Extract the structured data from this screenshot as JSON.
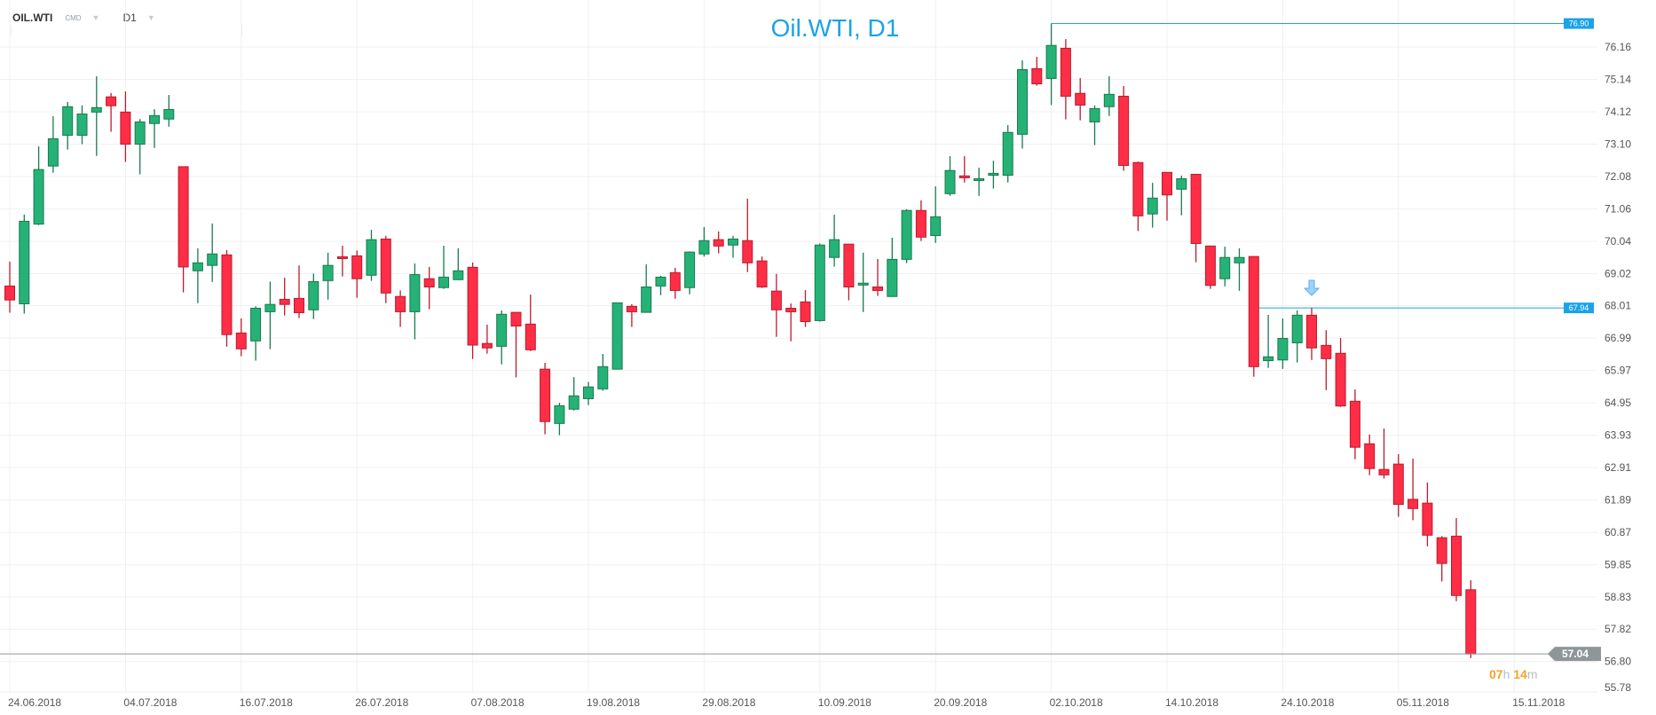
{
  "header": {
    "symbol": "OIL.WTI",
    "category": "CMD",
    "timeframe": "D1"
  },
  "chart_data": {
    "type": "candlestick",
    "title": "Oil.WTI, D1",
    "y_ticks": [
      "76.16",
      "75.14",
      "74.12",
      "73.10",
      "72.08",
      "71.06",
      "70.04",
      "69.02",
      "68.01",
      "66.99",
      "65.97",
      "64.95",
      "63.93",
      "62.91",
      "61.89",
      "60.87",
      "59.85",
      "58.83",
      "57.82",
      "56.80",
      "55.78"
    ],
    "ylim": [
      55.78,
      76.9
    ],
    "x_ticks": [
      "24.06.2018",
      "04.07.2018",
      "16.07.2018",
      "26.07.2018",
      "07.08.2018",
      "19.08.2018",
      "29.08.2018",
      "10.09.2018",
      "20.09.2018",
      "02.10.2018",
      "14.10.2018",
      "24.10.2018",
      "05.11.2018",
      "15.11.2018"
    ],
    "ohlc_fields": [
      "open",
      "high",
      "low",
      "close"
    ],
    "candles": [
      [
        68.63,
        69.4,
        67.79,
        68.19
      ],
      [
        68.07,
        70.88,
        67.76,
        70.67
      ],
      [
        70.58,
        73.03,
        70.55,
        72.3
      ],
      [
        72.41,
        73.98,
        72.2,
        73.27
      ],
      [
        73.38,
        74.43,
        72.93,
        74.28
      ],
      [
        73.38,
        74.32,
        73.1,
        74.05
      ],
      [
        74.11,
        75.24,
        72.73,
        74.25
      ],
      [
        74.59,
        74.71,
        73.49,
        74.31
      ],
      [
        74.11,
        74.76,
        72.54,
        73.1
      ],
      [
        73.1,
        73.89,
        72.15,
        73.8
      ],
      [
        73.75,
        74.2,
        72.98,
        74.0
      ],
      [
        73.89,
        74.65,
        73.65,
        74.19
      ],
      [
        72.39,
        72.39,
        68.43,
        69.23
      ],
      [
        69.11,
        69.82,
        68.09,
        69.36
      ],
      [
        69.28,
        70.6,
        68.76,
        69.64
      ],
      [
        69.61,
        69.76,
        66.72,
        67.1
      ],
      [
        67.15,
        67.61,
        66.42,
        66.65
      ],
      [
        66.9,
        67.99,
        66.28,
        67.93
      ],
      [
        67.82,
        68.77,
        66.64,
        68.05
      ],
      [
        68.21,
        68.89,
        67.7,
        68.05
      ],
      [
        68.24,
        69.28,
        67.62,
        67.79
      ],
      [
        67.88,
        69.02,
        67.59,
        68.77
      ],
      [
        68.8,
        69.68,
        68.2,
        69.28
      ],
      [
        69.55,
        69.9,
        68.93,
        69.5
      ],
      [
        69.58,
        69.75,
        68.26,
        68.86
      ],
      [
        68.97,
        70.4,
        68.79,
        70.09
      ],
      [
        70.11,
        70.21,
        68.09,
        68.41
      ],
      [
        68.3,
        68.49,
        67.34,
        67.82
      ],
      [
        67.82,
        69.34,
        66.95,
        68.99
      ],
      [
        68.86,
        69.23,
        67.9,
        68.6
      ],
      [
        68.58,
        69.9,
        68.54,
        68.91
      ],
      [
        68.83,
        69.82,
        68.83,
        69.11
      ],
      [
        69.22,
        69.37,
        66.33,
        66.77
      ],
      [
        66.82,
        67.41,
        66.5,
        66.68
      ],
      [
        66.73,
        67.86,
        66.16,
        67.74
      ],
      [
        67.8,
        67.8,
        65.75,
        67.37
      ],
      [
        67.43,
        68.36,
        66.58,
        66.62
      ],
      [
        66.01,
        66.21,
        63.96,
        64.36
      ],
      [
        64.3,
        64.95,
        63.93,
        64.86
      ],
      [
        64.75,
        65.76,
        64.71,
        65.17
      ],
      [
        65.08,
        65.61,
        64.88,
        65.45
      ],
      [
        65.39,
        66.49,
        65.33,
        66.09
      ],
      [
        66.01,
        68.1,
        66.01,
        68.1
      ],
      [
        67.99,
        68.06,
        67.34,
        67.82
      ],
      [
        67.8,
        69.31,
        67.8,
        68.6
      ],
      [
        68.63,
        68.95,
        68.34,
        68.91
      ],
      [
        69.05,
        69.2,
        68.23,
        68.49
      ],
      [
        68.58,
        69.72,
        68.37,
        69.7
      ],
      [
        69.64,
        70.49,
        69.56,
        70.06
      ],
      [
        70.09,
        70.35,
        69.66,
        69.89
      ],
      [
        69.92,
        70.21,
        69.52,
        70.11
      ],
      [
        70.06,
        71.38,
        69.07,
        69.36
      ],
      [
        69.42,
        69.56,
        68.57,
        68.6
      ],
      [
        68.47,
        69.01,
        67.03,
        67.88
      ],
      [
        67.93,
        68.08,
        66.89,
        67.82
      ],
      [
        68.13,
        68.5,
        67.34,
        67.51
      ],
      [
        67.54,
        69.97,
        67.51,
        69.92
      ],
      [
        69.53,
        70.88,
        69.24,
        70.09
      ],
      [
        69.95,
        69.95,
        68.18,
        68.6
      ],
      [
        68.66,
        69.68,
        67.81,
        68.72
      ],
      [
        68.6,
        69.48,
        68.32,
        68.49
      ],
      [
        68.3,
        70.15,
        68.3,
        69.47
      ],
      [
        69.47,
        71.05,
        69.35,
        71.01
      ],
      [
        71.01,
        71.33,
        70.05,
        70.17
      ],
      [
        70.22,
        71.77,
        69.99,
        70.81
      ],
      [
        71.54,
        72.72,
        71.47,
        72.27
      ],
      [
        72.1,
        72.72,
        71.89,
        72.04
      ],
      [
        71.96,
        72.36,
        71.47,
        72.01
      ],
      [
        72.12,
        72.58,
        71.7,
        72.18
      ],
      [
        72.12,
        73.7,
        71.89,
        73.47
      ],
      [
        73.41,
        75.74,
        72.96,
        75.45
      ],
      [
        75.48,
        75.85,
        74.94,
        75.0
      ],
      [
        75.17,
        76.9,
        74.33,
        76.21
      ],
      [
        76.12,
        76.41,
        73.88,
        74.61
      ],
      [
        74.7,
        75.18,
        73.85,
        74.33
      ],
      [
        73.8,
        74.32,
        73.07,
        74.22
      ],
      [
        74.28,
        75.24,
        73.99,
        74.67
      ],
      [
        74.61,
        74.93,
        72.26,
        72.43
      ],
      [
        72.52,
        72.55,
        70.36,
        70.84
      ],
      [
        70.9,
        71.88,
        70.47,
        71.4
      ],
      [
        72.21,
        72.21,
        70.69,
        71.5
      ],
      [
        71.68,
        72.11,
        70.86,
        72.01
      ],
      [
        72.15,
        72.15,
        69.38,
        69.97
      ],
      [
        69.89,
        69.89,
        68.54,
        68.65
      ],
      [
        68.86,
        69.87,
        68.62,
        69.53
      ],
      [
        69.36,
        69.82,
        68.48,
        69.53
      ],
      [
        69.56,
        69.56,
        65.77,
        66.09
      ],
      [
        66.28,
        67.72,
        66.05,
        66.4
      ],
      [
        66.3,
        67.61,
        66.02,
        66.98
      ],
      [
        66.84,
        67.86,
        66.22,
        67.71
      ],
      [
        67.71,
        67.94,
        66.3,
        66.68
      ],
      [
        66.76,
        67.24,
        65.35,
        66.34
      ],
      [
        66.51,
        66.99,
        64.82,
        64.85
      ],
      [
        65.0,
        65.37,
        63.17,
        63.55
      ],
      [
        63.66,
        63.95,
        62.67,
        62.88
      ],
      [
        62.85,
        64.14,
        62.56,
        62.68
      ],
      [
        63.02,
        63.33,
        61.36,
        61.75
      ],
      [
        61.91,
        63.19,
        61.25,
        61.62
      ],
      [
        61.79,
        62.44,
        60.43,
        60.78
      ],
      [
        60.7,
        60.75,
        59.32,
        59.89
      ],
      [
        60.75,
        61.32,
        58.7,
        58.88
      ],
      [
        59.06,
        59.36,
        56.91,
        57.04
      ]
    ],
    "levels": [
      {
        "label": "76.90",
        "value": 76.9,
        "color": "#1ba3e6",
        "from_candle": 72
      },
      {
        "label": "67.94",
        "value": 67.94,
        "color": "#1ba3e6",
        "from_candle": 86
      }
    ],
    "current_price": {
      "label": "57.04",
      "value": 57.04,
      "color": "#8e9699"
    },
    "signal_marker": {
      "type": "sell-arrow",
      "candle": 90,
      "color": "#4fb0f5"
    },
    "colors": {
      "up": "#26b276",
      "up_border": "#187a4f",
      "down": "#ff2d46",
      "down_border": "#b81c2e",
      "grid": "#f0f0f0"
    },
    "grid": true
  },
  "timer": {
    "hours": "07",
    "h_unit": "h",
    "minutes": "14",
    "m_unit": "m"
  }
}
